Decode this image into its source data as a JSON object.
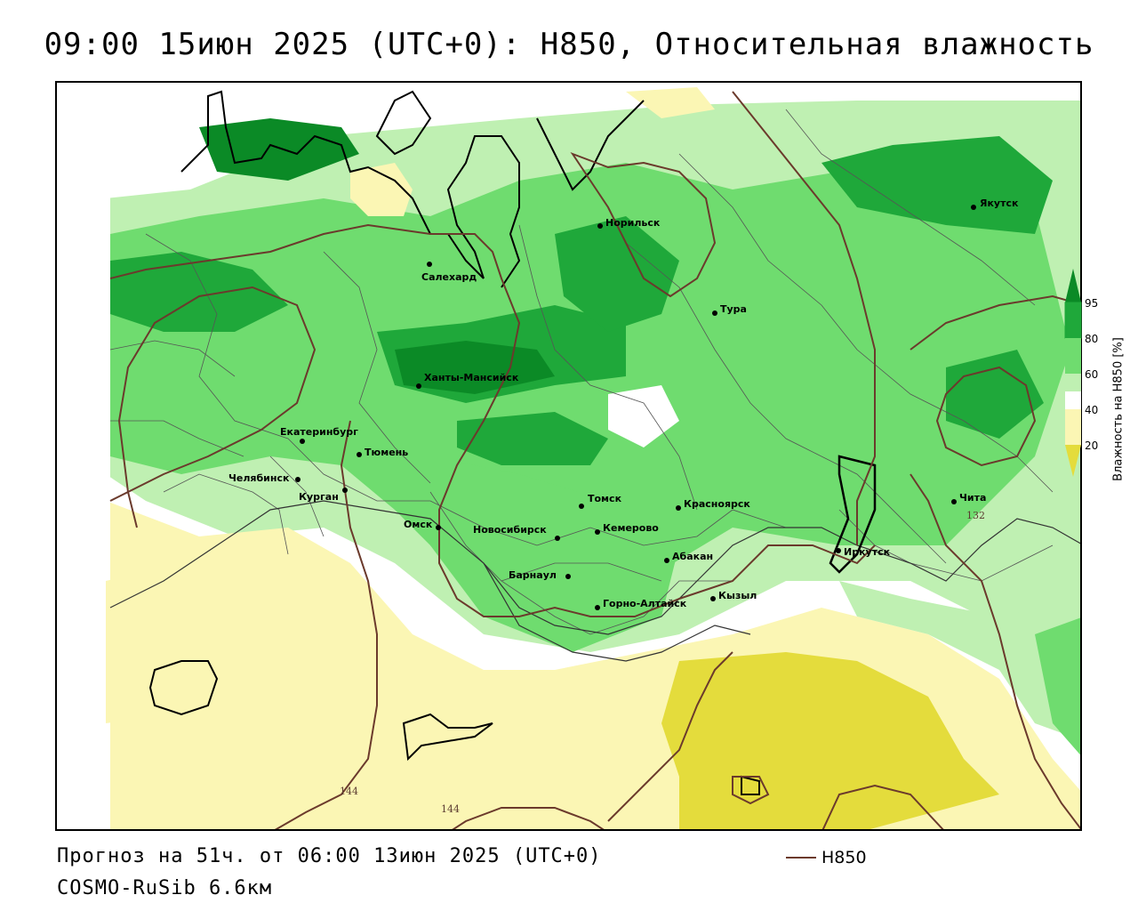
{
  "title": "09:00 15июн 2025 (UTC+0): H850, Относительная влажность",
  "forecast_line": "Прогноз на 51ч. от 06:00 13июн 2025 (UTC+0)",
  "model_line": "COSMO-RuSib 6.6км",
  "legend": {
    "line_label": "H850",
    "line_color": "#6b3a2c"
  },
  "colorbar": {
    "title": "Влажность на H850 [%]",
    "ticks": [
      "95",
      "80",
      "60",
      "40",
      "20"
    ],
    "colors": {
      "above_95": "#0b8a26",
      "80_95": "#1fa83a",
      "60_80": "#6fdc6f",
      "50_60": "#bff0b2",
      "40_50": "#ffffff",
      "20_40": "#fbf6b4",
      "below_20": "#e4dc3c"
    }
  },
  "cities": [
    {
      "name": "Якутск"
    },
    {
      "name": "Норильск"
    },
    {
      "name": "Салехард"
    },
    {
      "name": "Тура"
    },
    {
      "name": "Ханты-Мансийск"
    },
    {
      "name": "Екатеринбург"
    },
    {
      "name": "Тюмень"
    },
    {
      "name": "Челябинск"
    },
    {
      "name": "Курган"
    },
    {
      "name": "Омск"
    },
    {
      "name": "Новосибирск"
    },
    {
      "name": "Томск"
    },
    {
      "name": "Кемерово"
    },
    {
      "name": "Красноярск"
    },
    {
      "name": "Абакан"
    },
    {
      "name": "Барнаул"
    },
    {
      "name": "Горно-Алтайск"
    },
    {
      "name": "Кызыл"
    },
    {
      "name": "Иркутск"
    },
    {
      "name": "Чита"
    }
  ],
  "contour_labels": [
    "144",
    "144",
    "132"
  ]
}
